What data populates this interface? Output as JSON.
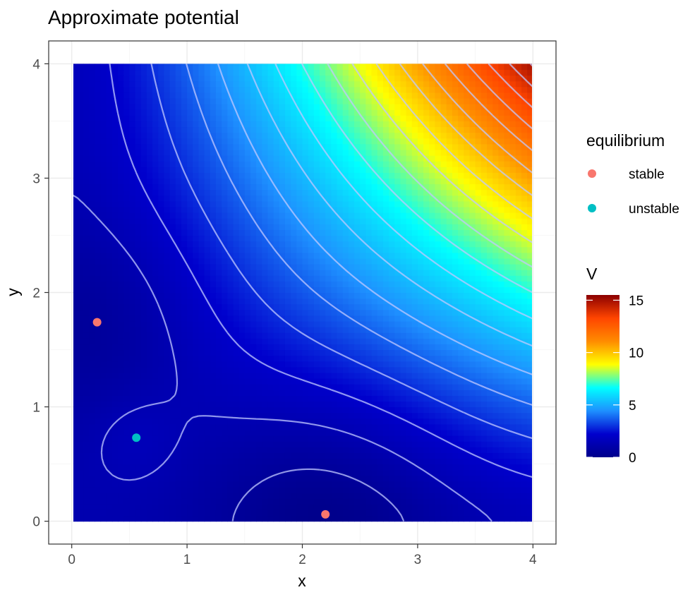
{
  "chart_data": {
    "type": "heatmap",
    "title": "Approximate potential",
    "xlabel": "x",
    "ylabel": "y",
    "xlim": [
      -0.2,
      4.2
    ],
    "ylim": [
      -0.2,
      4.2
    ],
    "x_ticks": [
      {
        "value": 0,
        "label": "0"
      },
      {
        "value": 1,
        "label": "1"
      },
      {
        "value": 2,
        "label": "2"
      },
      {
        "value": 3,
        "label": "3"
      },
      {
        "value": 4,
        "label": "4"
      }
    ],
    "y_ticks": [
      {
        "value": 0,
        "label": "0"
      },
      {
        "value": 1,
        "label": "1"
      },
      {
        "value": 2,
        "label": "2"
      },
      {
        "value": 3,
        "label": "3"
      },
      {
        "value": 4,
        "label": "4"
      }
    ],
    "grid": true,
    "fill_variable": "V",
    "fill_range": [
      0,
      15.5
    ],
    "colorbar_ticks": [
      {
        "value": 0,
        "label": "0"
      },
      {
        "value": 5,
        "label": "5"
      },
      {
        "value": 10,
        "label": "10"
      },
      {
        "value": 15,
        "label": "15"
      }
    ],
    "colormap": [
      "#00008b",
      "#0000cd",
      "#1e90ff",
      "#00ffff",
      "#ffff00",
      "#ff8c00",
      "#ff4500",
      "#8b0000"
    ],
    "contour_color": "#c0c8ff",
    "points_legend_title": "equilibrium",
    "points": [
      {
        "x": 0.22,
        "y": 1.74,
        "type": "stable"
      },
      {
        "x": 0.56,
        "y": 0.73,
        "type": "unstable"
      },
      {
        "x": 2.2,
        "y": 0.06,
        "type": "stable"
      }
    ],
    "point_categories": [
      {
        "label": "stable",
        "color": "#f8766d"
      },
      {
        "label": "unstable",
        "color": "#00bfc4"
      }
    ],
    "legend_position": "right"
  }
}
